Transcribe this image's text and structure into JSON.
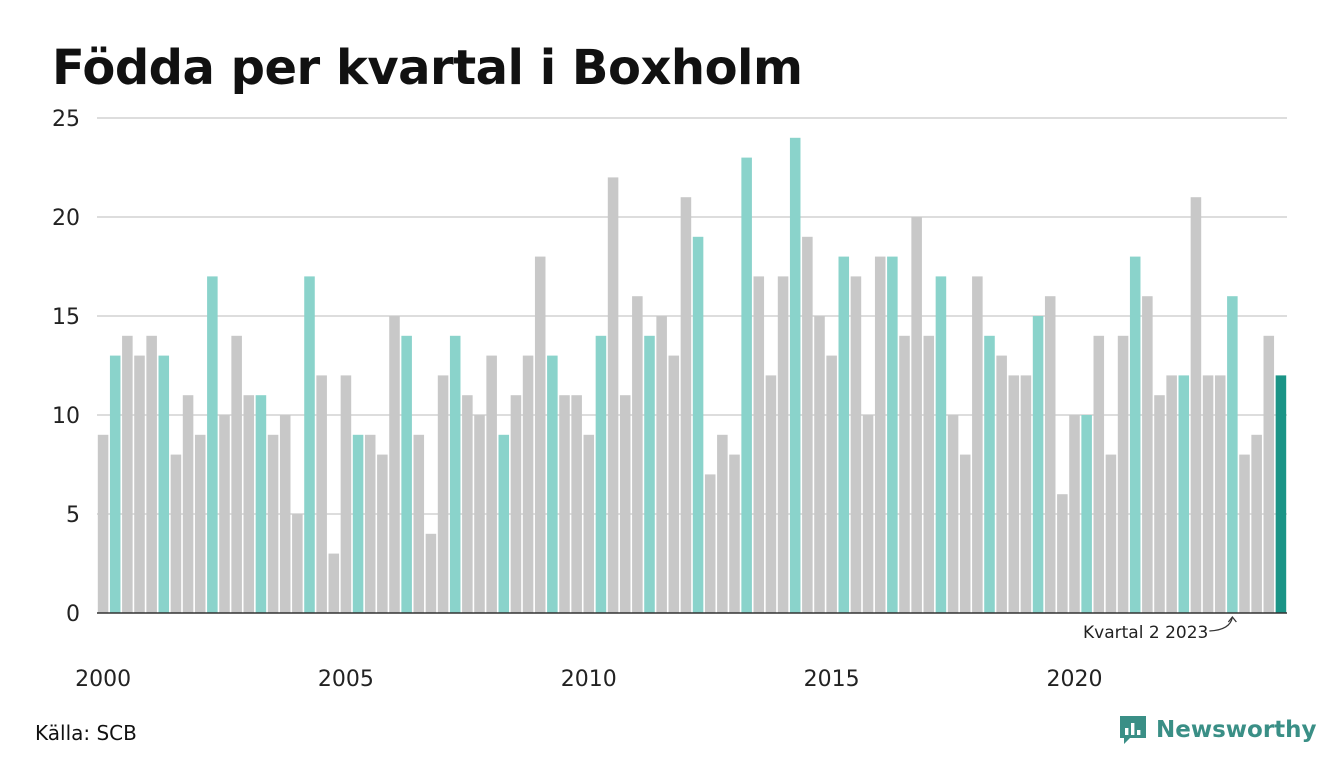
{
  "chart_data": {
    "type": "bar",
    "title": "Födda per kvartal i Boxholm",
    "x_tick_labels": [
      "2000",
      "2005",
      "2010",
      "2015",
      "2020"
    ],
    "y_tick_labels": [
      "0",
      "5",
      "10",
      "15",
      "20",
      "25"
    ],
    "ylim": [
      0,
      25
    ],
    "grid": true,
    "categories": [
      "2000 K1",
      "2000 K2",
      "2000 K3",
      "2000 K4",
      "2001 K1",
      "2001 K2",
      "2001 K3",
      "2001 K4",
      "2002 K1",
      "2002 K2",
      "2002 K3",
      "2002 K4",
      "2003 K1",
      "2003 K2",
      "2003 K3",
      "2003 K4",
      "2004 K1",
      "2004 K2",
      "2004 K3",
      "2004 K4",
      "2005 K1",
      "2005 K2",
      "2005 K3",
      "2005 K4",
      "2006 K1",
      "2006 K2",
      "2006 K3",
      "2006 K4",
      "2007 K1",
      "2007 K2",
      "2007 K3",
      "2007 K4",
      "2008 K1",
      "2008 K2",
      "2008 K3",
      "2008 K4",
      "2009 K1",
      "2009 K2",
      "2009 K3",
      "2009 K4",
      "2010 K1",
      "2010 K2",
      "2010 K3",
      "2010 K4",
      "2011 K1",
      "2011 K2",
      "2011 K3",
      "2011 K4",
      "2012 K1",
      "2012 K2",
      "2012 K3",
      "2012 K4",
      "2013 K1",
      "2013 K2",
      "2013 K3",
      "2013 K4",
      "2014 K1",
      "2014 K2",
      "2014 K3",
      "2014 K4",
      "2015 K1",
      "2015 K2",
      "2015 K3",
      "2015 K4",
      "2016 K1",
      "2016 K2",
      "2016 K3",
      "2016 K4",
      "2017 K1",
      "2017 K2",
      "2017 K3",
      "2017 K4",
      "2018 K1",
      "2018 K2",
      "2018 K3",
      "2018 K4",
      "2019 K1",
      "2019 K2",
      "2019 K3",
      "2019 K4",
      "2020 K1",
      "2020 K2",
      "2020 K3",
      "2020 K4",
      "2021 K1",
      "2021 K2",
      "2021 K3",
      "2021 K4",
      "2022 K1",
      "2022 K2",
      "2022 K3",
      "2022 K4",
      "2023 K1",
      "2023 K2",
      "2023 K3",
      "2023 K4",
      "2024 K1",
      "2024 K2"
    ],
    "values": [
      9,
      13,
      14,
      13,
      14,
      13,
      8,
      11,
      9,
      17,
      10,
      14,
      11,
      11,
      9,
      10,
      5,
      17,
      12,
      3,
      12,
      9,
      9,
      8,
      15,
      14,
      9,
      4,
      12,
      14,
      11,
      10,
      13,
      9,
      11,
      13,
      18,
      13,
      11,
      11,
      9,
      14,
      22,
      11,
      16,
      14,
      15,
      13,
      21,
      19,
      7,
      9,
      8,
      23,
      17,
      12,
      17,
      24,
      19,
      15,
      13,
      18,
      17,
      10,
      18,
      18,
      14,
      20,
      14,
      17,
      10,
      8,
      17,
      14,
      13,
      12,
      12,
      15,
      16,
      6,
      10,
      10,
      14,
      8,
      14,
      18,
      16,
      11,
      12,
      12,
      21,
      12,
      12,
      16,
      8,
      9,
      14,
      12
    ],
    "annotation": "Kvartal 2 2023",
    "colors": {
      "default_bar": "#c8c8c8",
      "q2_bar": "#8ad3cb",
      "latest_bar": "#1a9486",
      "grid": "#dddddd",
      "axis": "#333333"
    }
  },
  "footer": {
    "source": "Källa: SCB",
    "brand": "Newsworthy",
    "brand_icon": "newsworthy-logo-icon"
  }
}
